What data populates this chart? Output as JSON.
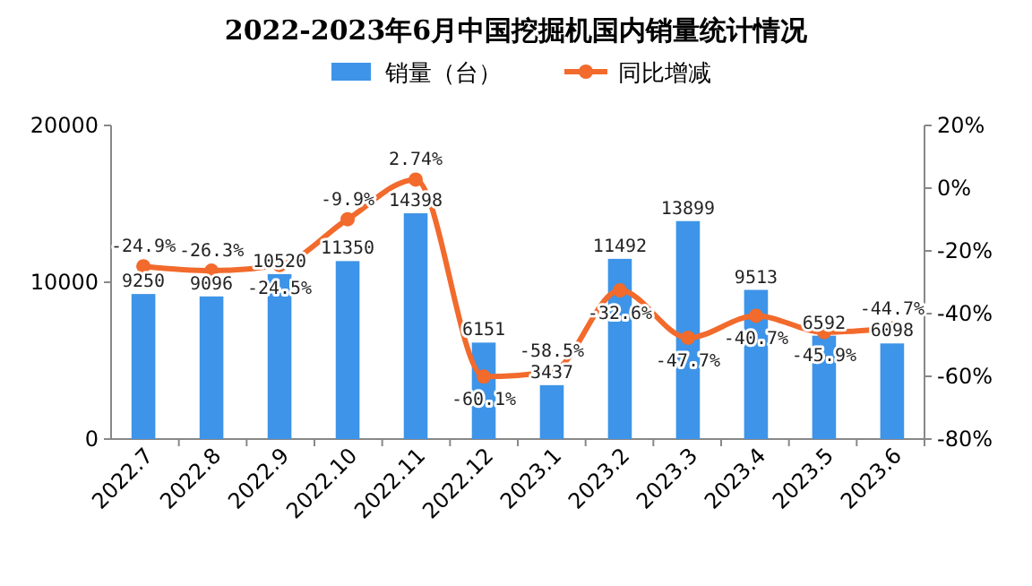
{
  "chart_data": {
    "type": "bar",
    "title": "2022-2023年6月中国挖掘机国内销量统计情况",
    "categories": [
      "2022.7",
      "2022.8",
      "2022.9",
      "2022.10",
      "2022.11",
      "2022.12",
      "2023.1",
      "2023.2",
      "2023.3",
      "2023.4",
      "2023.5",
      "2023.6"
    ],
    "series": [
      {
        "name": "销量（台）",
        "type": "bar",
        "color": "#3e94e8",
        "values": [
          9250,
          9096,
          10520,
          11350,
          14398,
          6151,
          3437,
          11492,
          13899,
          9513,
          6592,
          6098
        ]
      },
      {
        "name": "同比增减",
        "type": "line",
        "axis": "y2",
        "color": "#f26a2c",
        "marker": "circle",
        "values": [
          -24.9,
          -26.3,
          -24.5,
          -9.9,
          2.74,
          -60.1,
          -58.5,
          -32.6,
          -47.7,
          -40.7,
          -45.9,
          -44.7
        ],
        "value_labels": [
          "-24.9%",
          "-26.3%",
          "-24.5%",
          "-9.9%",
          "2.74%",
          "-60.1%",
          "-58.5%",
          "-32.6%",
          "-47.7%",
          "-40.7%",
          "-45.9%",
          "-44.7%"
        ]
      }
    ],
    "ylim": [
      0,
      20000
    ],
    "yticks": [
      0,
      10000,
      20000
    ],
    "y2lim": [
      -80,
      20
    ],
    "y2ticks": [
      {
        "value": -80,
        "label": "-80%"
      },
      {
        "value": -60,
        "label": "-60%"
      },
      {
        "value": -40,
        "label": "-40%"
      },
      {
        "value": -20,
        "label": "-20%"
      },
      {
        "value": 0,
        "label": "0%"
      },
      {
        "value": 20,
        "label": "20%"
      }
    ],
    "data_labels": true,
    "legend": "top",
    "grid": false
  }
}
